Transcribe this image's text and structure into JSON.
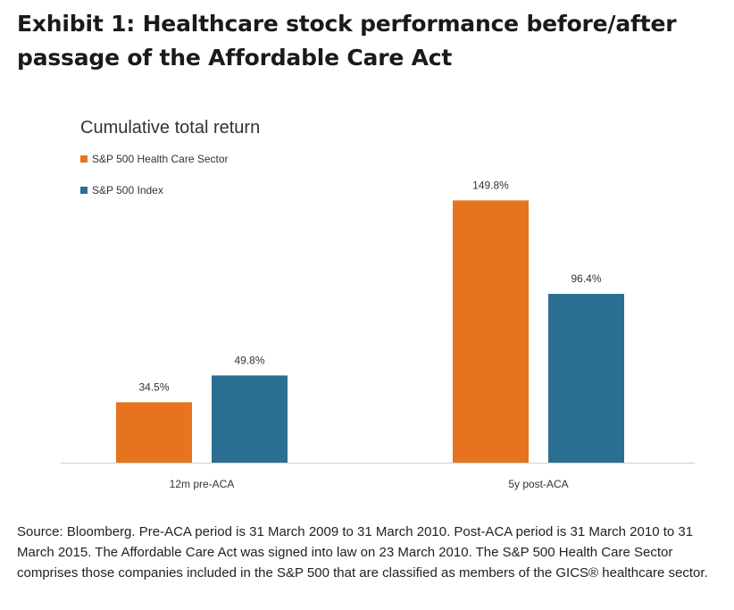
{
  "title": "Exhibit 1: Healthcare stock performance before/after passage of the Affordable Care Act",
  "chart_data": {
    "type": "bar",
    "title": "Cumulative total return",
    "categories": [
      "12m pre-ACA",
      "5y post-ACA"
    ],
    "series": [
      {
        "name": "S&P 500 Health Care Sector",
        "color": "#E8731F",
        "values": [
          34.5,
          149.8
        ],
        "labels": [
          "34.5%",
          "149.8%"
        ]
      },
      {
        "name": "S&P 500 Index",
        "color": "#2A6F91",
        "values": [
          49.8,
          96.4
        ],
        "labels": [
          "49.8%",
          "96.4%"
        ]
      }
    ],
    "ylim": [
      0,
      150
    ],
    "grid": false,
    "legend": "top-left"
  },
  "source": "Source: Bloomberg. Pre-ACA period is 31 March 2009 to 31 March 2010. Post-ACA period is 31 March 2010 to 31 March 2015. The Affordable Care Act was signed into law on 23 March 2010. The S&P 500 Health Care Sector comprises those companies included in the S&P 500 that are classified as members of the GICS® healthcare sector."
}
